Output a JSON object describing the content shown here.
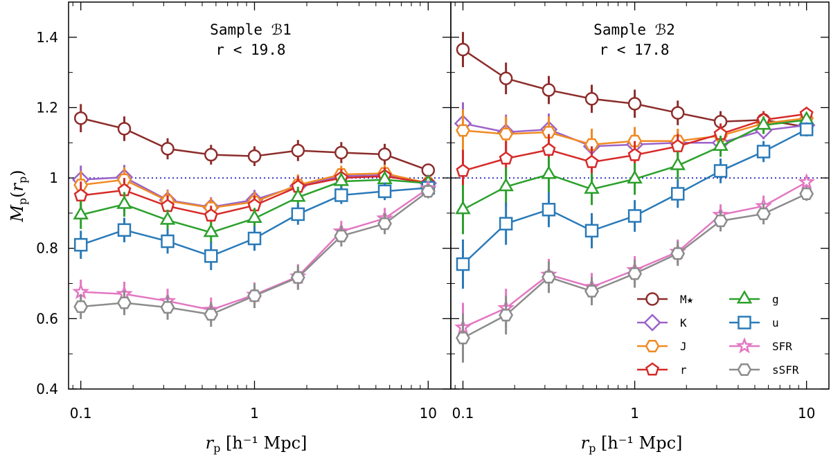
{
  "chart_data": {
    "type": "line",
    "xscale": "log",
    "xlim": [
      0.085,
      13.5
    ],
    "ylim": [
      0.4,
      1.5
    ],
    "x_ticks": [
      "0.1",
      "1",
      "10"
    ],
    "y_ticks": [
      "0.4",
      "0.6",
      "0.8",
      "1",
      "1.2",
      "1.4"
    ],
    "reference_line": 1,
    "grid": false,
    "xlabel": {
      "var": "r",
      "sub": "p",
      "unit": "[h⁻¹ Mpc]"
    },
    "ylabel": {
      "var": "M",
      "sub": "p",
      "arg": "(r",
      "argsub": "p",
      "close": ")"
    },
    "legend_position": "bottom-right of right panel",
    "x": [
      0.1,
      0.178,
      0.316,
      0.562,
      1.0,
      1.78,
      3.16,
      5.62,
      10.0
    ],
    "panels": [
      {
        "title": "Sample ℬ1",
        "subtitle": "r < 19.8",
        "series": [
          {
            "name": "M★",
            "color": "#8c2d2b",
            "marker": "circle",
            "values": [
              1.17,
              1.14,
              1.083,
              1.066,
              1.062,
              1.078,
              1.072,
              1.067,
              1.022
            ],
            "errors": [
              0.04,
              0.035,
              0.03,
              0.028,
              0.028,
              0.03,
              0.03,
              0.03,
              0.015
            ]
          },
          {
            "name": "K",
            "color": "#9b62c8",
            "marker": "diamond",
            "values": [
              0.995,
              1.002,
              0.937,
              0.917,
              0.938,
              0.977,
              1.005,
              1.008,
              0.985
            ],
            "errors": [
              0.04,
              0.035,
              0.03,
              0.028,
              0.028,
              0.03,
              0.025,
              0.025,
              0.015
            ]
          },
          {
            "name": "J",
            "color": "#f08a24",
            "marker": "hexagon",
            "values": [
              0.98,
              0.995,
              0.935,
              0.915,
              0.932,
              0.98,
              1.01,
              1.013,
              0.985
            ],
            "errors": [
              0.04,
              0.035,
              0.03,
              0.028,
              0.028,
              0.03,
              0.025,
              0.025,
              0.015
            ]
          },
          {
            "name": "r",
            "color": "#d62a28",
            "marker": "pentagon",
            "values": [
              0.95,
              0.965,
              0.92,
              0.893,
              0.922,
              0.975,
              1.0,
              1.005,
              0.985
            ],
            "errors": [
              0.04,
              0.035,
              0.03,
              0.028,
              0.028,
              0.03,
              0.025,
              0.025,
              0.015
            ]
          },
          {
            "name": "g",
            "color": "#2ca02c",
            "marker": "triangle",
            "values": [
              0.895,
              0.925,
              0.88,
              0.845,
              0.885,
              0.945,
              0.99,
              0.995,
              0.985
            ],
            "errors": [
              0.04,
              0.035,
              0.03,
              0.03,
              0.03,
              0.03,
              0.025,
              0.025,
              0.015
            ]
          },
          {
            "name": "u",
            "color": "#2a7ab8",
            "marker": "square",
            "values": [
              0.81,
              0.852,
              0.82,
              0.778,
              0.828,
              0.897,
              0.951,
              0.962,
              0.972
            ],
            "errors": [
              0.04,
              0.035,
              0.035,
              0.04,
              0.035,
              0.03,
              0.025,
              0.025,
              0.015
            ]
          },
          {
            "name": "SFR",
            "color": "#e377c2",
            "marker": "star",
            "values": [
              0.676,
              0.67,
              0.65,
              0.625,
              0.668,
              0.72,
              0.848,
              0.885,
              0.97
            ],
            "errors": [
              0.035,
              0.035,
              0.035,
              0.035,
              0.035,
              0.035,
              0.03,
              0.03,
              0.02
            ]
          },
          {
            "name": "sSFR",
            "color": "#8c8c8c",
            "marker": "hexagon",
            "values": [
              0.634,
              0.645,
              0.632,
              0.612,
              0.665,
              0.717,
              0.835,
              0.87,
              0.962
            ],
            "errors": [
              0.035,
              0.035,
              0.035,
              0.035,
              0.035,
              0.035,
              0.03,
              0.03,
              0.02
            ]
          }
        ]
      },
      {
        "title": "Sample ℬ2",
        "subtitle": "r < 17.8",
        "series": [
          {
            "name": "M★",
            "color": "#8c2d2b",
            "marker": "circle",
            "values": [
              1.365,
              1.283,
              1.25,
              1.225,
              1.211,
              1.185,
              1.16,
              1.165,
              1.145
            ],
            "errors": [
              0.05,
              0.045,
              0.04,
              0.04,
              0.04,
              0.035,
              0.03,
              0.025,
              0.02
            ]
          },
          {
            "name": "K",
            "color": "#9b62c8",
            "marker": "diamond",
            "values": [
              1.155,
              1.13,
              1.138,
              1.09,
              1.095,
              1.1,
              1.1,
              1.135,
              1.15
            ],
            "errors": [
              0.06,
              0.05,
              0.045,
              0.045,
              0.04,
              0.035,
              0.03,
              0.025,
              0.02
            ]
          },
          {
            "name": "J",
            "color": "#f08a24",
            "marker": "hexagon",
            "values": [
              1.135,
              1.125,
              1.13,
              1.095,
              1.105,
              1.105,
              1.12,
              1.155,
              1.17
            ],
            "errors": [
              0.06,
              0.05,
              0.045,
              0.045,
              0.04,
              0.035,
              0.03,
              0.025,
              0.02
            ]
          },
          {
            "name": "r",
            "color": "#d62a28",
            "marker": "pentagon",
            "values": [
              1.02,
              1.055,
              1.08,
              1.045,
              1.065,
              1.09,
              1.125,
              1.165,
              1.182
            ],
            "errors": [
              0.06,
              0.05,
              0.045,
              0.045,
              0.04,
              0.035,
              0.03,
              0.025,
              0.02
            ]
          },
          {
            "name": "g",
            "color": "#2ca02c",
            "marker": "triangle",
            "values": [
              0.91,
              0.975,
              1.01,
              0.968,
              0.997,
              1.035,
              1.09,
              1.15,
              1.165
            ],
            "errors": [
              0.07,
              0.055,
              0.05,
              0.045,
              0.045,
              0.04,
              0.03,
              0.025,
              0.02
            ]
          },
          {
            "name": "u",
            "color": "#2a7ab8",
            "marker": "square",
            "values": [
              0.755,
              0.87,
              0.91,
              0.85,
              0.892,
              0.955,
              1.02,
              1.075,
              1.138
            ],
            "errors": [
              0.07,
              0.06,
              0.05,
              0.05,
              0.045,
              0.04,
              0.035,
              0.03,
              0.02
            ]
          },
          {
            "name": "SFR",
            "color": "#e377c2",
            "marker": "star",
            "values": [
              0.575,
              0.63,
              0.725,
              0.69,
              0.738,
              0.79,
              0.895,
              0.92,
              0.988
            ],
            "errors": [
              0.07,
              0.055,
              0.045,
              0.04,
              0.04,
              0.035,
              0.03,
              0.03,
              0.02
            ]
          },
          {
            "name": "sSFR",
            "color": "#8c8c8c",
            "marker": "hexagon",
            "values": [
              0.545,
              0.61,
              0.718,
              0.678,
              0.728,
              0.785,
              0.878,
              0.898,
              0.955
            ],
            "errors": [
              0.07,
              0.055,
              0.045,
              0.04,
              0.04,
              0.035,
              0.03,
              0.03,
              0.02
            ]
          }
        ]
      }
    ]
  }
}
